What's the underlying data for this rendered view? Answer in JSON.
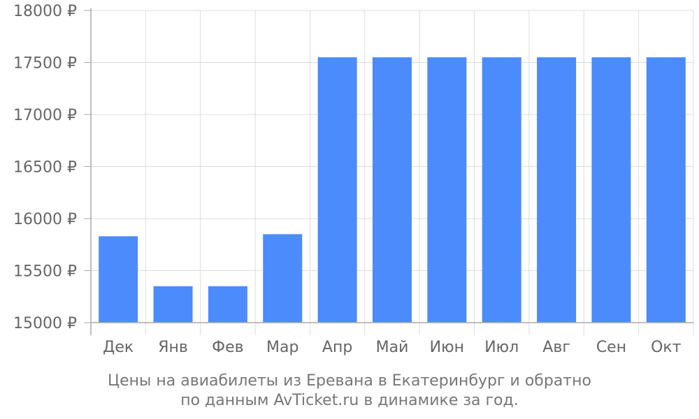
{
  "chart_data": {
    "type": "bar",
    "categories": [
      "Дек",
      "Янв",
      "Фев",
      "Мар",
      "Апр",
      "Май",
      "Июн",
      "Июл",
      "Авг",
      "Сен",
      "Окт"
    ],
    "values": [
      15830,
      15350,
      15350,
      15850,
      17550,
      17550,
      17550,
      17550,
      17550,
      17550,
      17550
    ],
    "y_ticks": [
      "15000 ₽",
      "15500 ₽",
      "16000 ₽",
      "16500 ₽",
      "17000 ₽",
      "17500 ₽",
      "18000 ₽"
    ],
    "ylim": [
      15000,
      18000
    ],
    "y_step": 500,
    "grid": true,
    "legend": "none",
    "bar_color": "#4c8bfb",
    "grid_color": "#dddddd",
    "axis_color": "#aaaaaa",
    "title": [
      "Цены на авиабилеты из Еревана в Екатеринбург и обратно",
      "по данным AvTicket.ru в динамике за год."
    ]
  }
}
